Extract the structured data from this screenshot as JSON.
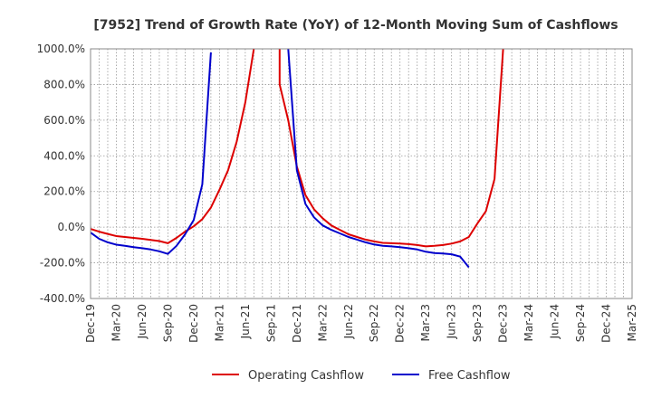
{
  "chart_data": {
    "type": "line",
    "title": "[7952]  Trend of Growth Rate (YoY) of 12-Month Moving Sum of Cashflows",
    "xlabel": "",
    "ylabel": "",
    "ylim": [
      -400,
      1000
    ],
    "y_ticks": [
      -400,
      -200,
      0,
      200,
      400,
      600,
      800,
      1000
    ],
    "y_tick_labels": [
      "-400.0%",
      "-200.0%",
      "0.0%",
      "200.0%",
      "400.0%",
      "600.0%",
      "800.0%",
      "1000.0%"
    ],
    "x_tick_labels": [
      "Dec-19",
      "Mar-20",
      "Jun-20",
      "Sep-20",
      "Dec-20",
      "Mar-21",
      "Jun-21",
      "Sep-21",
      "Dec-21",
      "Mar-22",
      "Jun-22",
      "Sep-22",
      "Dec-22",
      "Mar-23",
      "Jun-23",
      "Sep-23",
      "Dec-23",
      "Mar-24",
      "Jun-24",
      "Sep-24",
      "Dec-24",
      "Mar-25"
    ],
    "grid": true,
    "legend_position": "bottom",
    "series": [
      {
        "name": "Operating Cashflow",
        "color": "#dd0000",
        "points": [
          [
            "Dec-19",
            -10
          ],
          [
            "Jan-20",
            -25
          ],
          [
            "Feb-20",
            -38
          ],
          [
            "Mar-20",
            -50
          ],
          [
            "Apr-20",
            -55
          ],
          [
            "May-20",
            -60
          ],
          [
            "Jun-20",
            -65
          ],
          [
            "Jul-20",
            -72
          ],
          [
            "Aug-20",
            -78
          ],
          [
            "Sep-20",
            -90
          ],
          [
            "Oct-20",
            -60
          ],
          [
            "Nov-20",
            -25
          ],
          [
            "Dec-20",
            5
          ],
          [
            "Jan-21",
            45
          ],
          [
            "Feb-21",
            110
          ],
          [
            "Mar-21",
            210
          ],
          [
            "Apr-21",
            320
          ],
          [
            "May-21",
            480
          ],
          [
            "Jun-21",
            700
          ],
          [
            "Jul-21",
            1000
          ],
          [
            null,
            null
          ],
          [
            "Oct-21",
            1000
          ],
          [
            "Oct-21",
            800
          ],
          [
            "Nov-21",
            600
          ],
          [
            "Dec-21",
            340
          ],
          [
            "Jan-22",
            180
          ],
          [
            "Feb-22",
            100
          ],
          [
            "Mar-22",
            50
          ],
          [
            "Apr-22",
            10
          ],
          [
            "May-22",
            -15
          ],
          [
            "Jun-22",
            -40
          ],
          [
            "Jul-22",
            -55
          ],
          [
            "Aug-22",
            -70
          ],
          [
            "Sep-22",
            -80
          ],
          [
            "Oct-22",
            -88
          ],
          [
            "Nov-22",
            -90
          ],
          [
            "Dec-22",
            -92
          ],
          [
            "Jan-23",
            -95
          ],
          [
            "Feb-23",
            -100
          ],
          [
            "Mar-23",
            -108
          ],
          [
            "Apr-23",
            -105
          ],
          [
            "May-23",
            -100
          ],
          [
            "Jun-23",
            -92
          ],
          [
            "Jul-23",
            -80
          ],
          [
            "Aug-23",
            -55
          ],
          [
            "Sep-23",
            20
          ],
          [
            "Oct-23",
            90
          ],
          [
            "Nov-23",
            270
          ],
          [
            "Dec-23",
            1000
          ]
        ]
      },
      {
        "name": "Free Cashflow",
        "color": "#0000cc",
        "points": [
          [
            "Dec-19",
            -30
          ],
          [
            "Jan-20",
            -65
          ],
          [
            "Feb-20",
            -85
          ],
          [
            "Mar-20",
            -98
          ],
          [
            "Apr-20",
            -105
          ],
          [
            "May-20",
            -112
          ],
          [
            "Jun-20",
            -118
          ],
          [
            "Jul-20",
            -125
          ],
          [
            "Aug-20",
            -135
          ],
          [
            "Sep-20",
            -150
          ],
          [
            "Oct-20",
            -105
          ],
          [
            "Nov-20",
            -40
          ],
          [
            "Dec-20",
            40
          ],
          [
            "Jan-21",
            240
          ],
          [
            "Feb-21",
            980
          ],
          [
            null,
            null
          ],
          [
            "Nov-21",
            1000
          ],
          [
            "Dec-21",
            320
          ],
          [
            "Jan-22",
            130
          ],
          [
            "Feb-22",
            55
          ],
          [
            "Mar-22",
            10
          ],
          [
            "Apr-22",
            -15
          ],
          [
            "May-22",
            -35
          ],
          [
            "Jun-22",
            -55
          ],
          [
            "Jul-22",
            -70
          ],
          [
            "Aug-22",
            -85
          ],
          [
            "Sep-22",
            -97
          ],
          [
            "Oct-22",
            -105
          ],
          [
            "Nov-22",
            -108
          ],
          [
            "Dec-22",
            -112
          ],
          [
            "Jan-23",
            -118
          ],
          [
            "Feb-23",
            -125
          ],
          [
            "Mar-23",
            -138
          ],
          [
            "Apr-23",
            -145
          ],
          [
            "May-23",
            -148
          ],
          [
            "Jun-23",
            -152
          ],
          [
            "Jul-23",
            -165
          ],
          [
            "Aug-23",
            -225
          ]
        ]
      }
    ]
  }
}
